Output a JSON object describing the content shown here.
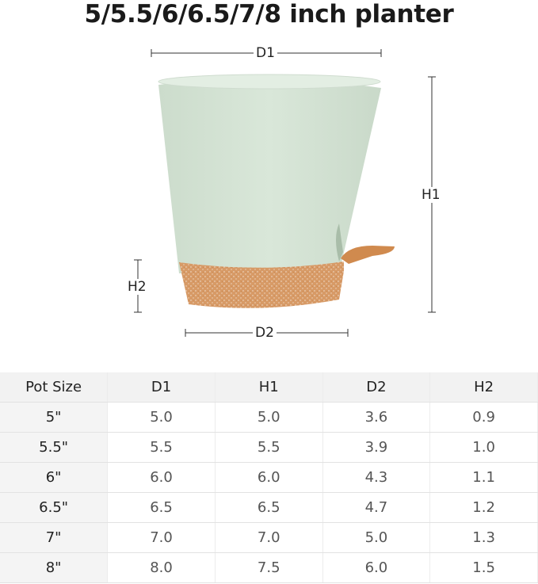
{
  "title": "5/5.5/6/6.5/7/8 inch planter",
  "labels": {
    "d1": "D1",
    "h1": "H1",
    "h2": "H2",
    "d2": "D2"
  },
  "colors": {
    "pot": "#d6e4d6",
    "saucer": "#d79a66",
    "reservoir": "#c98448"
  },
  "table": {
    "headers": [
      "Pot Size",
      "D1",
      "H1",
      "D2",
      "H2"
    ],
    "rows": [
      [
        "5\"",
        "5.0",
        "5.0",
        "3.6",
        "0.9"
      ],
      [
        "5.5\"",
        "5.5",
        "5.5",
        "3.9",
        "1.0"
      ],
      [
        "6\"",
        "6.0",
        "6.0",
        "4.3",
        "1.1"
      ],
      [
        "6.5\"",
        "6.5",
        "6.5",
        "4.7",
        "1.2"
      ],
      [
        "7\"",
        "7.0",
        "7.0",
        "5.0",
        "1.3"
      ],
      [
        "8\"",
        "8.0",
        "7.5",
        "6.0",
        "1.5"
      ]
    ]
  }
}
